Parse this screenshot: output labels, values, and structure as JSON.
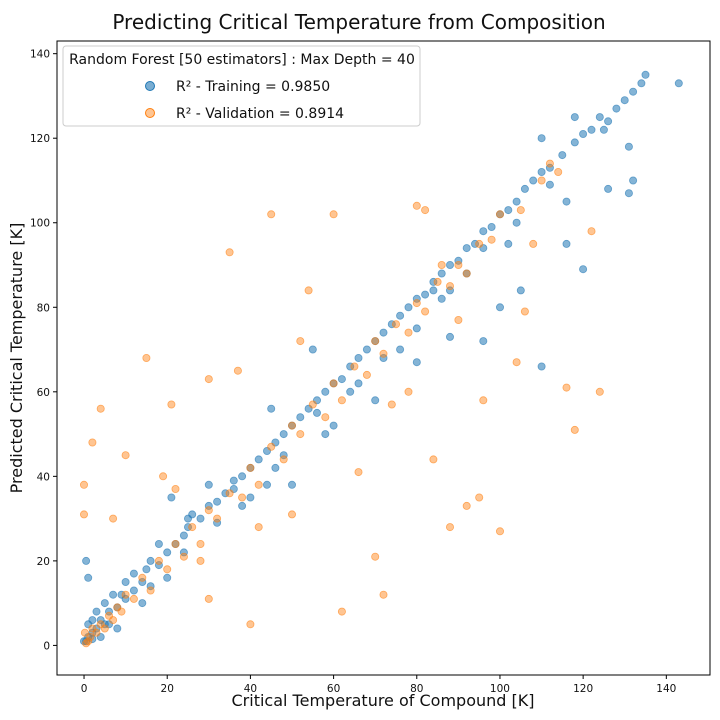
{
  "chart_data": {
    "type": "scatter",
    "title": "Predicting Critical Temperature from Composition",
    "xlabel": "Critical Temperature of Compound [K]",
    "ylabel": "Predicted Critical Temperature [K]",
    "xlim": [
      -6.5,
      150.5
    ],
    "ylim": [
      -7,
      143
    ],
    "xticks": [
      0,
      20,
      40,
      60,
      80,
      100,
      120,
      140
    ],
    "yticks": [
      0,
      20,
      40,
      60,
      80,
      100,
      120,
      140
    ],
    "grid": false,
    "legend": {
      "title": "Random Forest [50 estimators] : Max Depth = 40",
      "placement": "top-left",
      "entries": [
        {
          "label": "R² - Training = 0.9850",
          "color": "#1f77b4"
        },
        {
          "label": "R² - Validation = 0.8914",
          "color": "#ff7f0e"
        }
      ]
    },
    "series": [
      {
        "name": "R² - Training = 0.9850",
        "color": "#1f77b4",
        "points": [
          [
            0.5,
            1.0
          ],
          [
            1,
            2
          ],
          [
            2,
            1.5
          ],
          [
            3,
            4
          ],
          [
            5,
            5
          ],
          [
            4,
            6
          ],
          [
            6,
            8
          ],
          [
            8,
            9
          ],
          [
            10,
            11
          ],
          [
            12,
            13
          ],
          [
            14,
            15
          ],
          [
            15,
            18
          ],
          [
            18,
            19
          ],
          [
            20,
            22
          ],
          [
            22,
            24
          ],
          [
            24,
            26
          ],
          [
            25,
            28
          ],
          [
            28,
            30
          ],
          [
            30,
            33
          ],
          [
            32,
            34
          ],
          [
            34,
            36
          ],
          [
            36,
            37
          ],
          [
            38,
            40
          ],
          [
            40,
            42
          ],
          [
            42,
            44
          ],
          [
            44,
            46
          ],
          [
            46,
            48
          ],
          [
            48,
            50
          ],
          [
            50,
            52
          ],
          [
            52,
            54
          ],
          [
            54,
            56
          ],
          [
            56,
            58
          ],
          [
            58,
            60
          ],
          [
            60,
            62
          ],
          [
            62,
            63
          ],
          [
            64,
            66
          ],
          [
            66,
            68
          ],
          [
            68,
            70
          ],
          [
            70,
            72
          ],
          [
            72,
            74
          ],
          [
            74,
            76
          ],
          [
            76,
            78
          ],
          [
            78,
            80
          ],
          [
            80,
            82
          ],
          [
            82,
            83
          ],
          [
            84,
            86
          ],
          [
            86,
            88
          ],
          [
            88,
            90
          ],
          [
            90,
            91
          ],
          [
            92,
            94
          ],
          [
            94,
            95
          ],
          [
            96,
            98
          ],
          [
            98,
            99
          ],
          [
            100,
            102
          ],
          [
            102,
            103
          ],
          [
            104,
            105
          ],
          [
            106,
            108
          ],
          [
            108,
            110
          ],
          [
            110,
            112
          ],
          [
            112,
            113
          ],
          [
            115,
            116
          ],
          [
            118,
            119
          ],
          [
            120,
            121
          ],
          [
            122,
            122
          ],
          [
            124,
            125
          ],
          [
            126,
            124
          ],
          [
            128,
            127
          ],
          [
            130,
            129
          ],
          [
            132,
            131
          ],
          [
            134,
            133
          ],
          [
            135,
            135
          ],
          [
            143,
            133
          ],
          [
            131,
            118
          ],
          [
            132,
            110
          ],
          [
            126,
            108
          ],
          [
            131,
            107
          ],
          [
            120,
            89
          ],
          [
            116,
            95
          ],
          [
            116,
            105
          ],
          [
            125,
            122
          ],
          [
            110,
            120
          ],
          [
            118,
            125
          ],
          [
            105,
            84
          ],
          [
            100,
            80
          ],
          [
            96,
            72
          ],
          [
            110,
            66
          ],
          [
            88,
            73
          ],
          [
            80,
            67
          ],
          [
            84,
            84
          ],
          [
            70,
            58
          ],
          [
            60,
            52
          ],
          [
            55,
            70
          ],
          [
            50,
            38
          ],
          [
            45,
            56
          ],
          [
            44,
            38
          ],
          [
            36,
            39
          ],
          [
            30,
            38
          ],
          [
            26,
            31
          ],
          [
            25,
            30
          ],
          [
            21,
            35
          ],
          [
            20,
            16
          ],
          [
            18,
            24
          ],
          [
            16,
            20
          ],
          [
            14,
            10
          ],
          [
            12,
            17
          ],
          [
            10,
            15
          ],
          [
            9,
            12
          ],
          [
            7,
            12
          ],
          [
            6,
            5
          ],
          [
            5,
            10
          ],
          [
            4,
            2
          ],
          [
            3,
            8
          ],
          [
            2,
            6
          ],
          [
            1,
            16
          ],
          [
            0.5,
            20
          ],
          [
            1,
            5
          ],
          [
            2,
            3
          ],
          [
            0,
            1
          ],
          [
            8,
            4
          ],
          [
            16,
            14
          ],
          [
            24,
            22
          ],
          [
            32,
            29
          ],
          [
            40,
            35
          ],
          [
            48,
            45
          ],
          [
            56,
            55
          ],
          [
            64,
            60
          ],
          [
            72,
            68
          ],
          [
            80,
            75
          ],
          [
            88,
            84
          ],
          [
            96,
            94
          ],
          [
            104,
            100
          ],
          [
            112,
            109
          ],
          [
            102,
            95
          ],
          [
            92,
            88
          ],
          [
            86,
            82
          ],
          [
            76,
            70
          ],
          [
            66,
            62
          ],
          [
            58,
            50
          ],
          [
            46,
            42
          ],
          [
            38,
            33
          ]
        ]
      },
      {
        "name": "R² - Validation = 0.8914",
        "color": "#ff7f0e",
        "points": [
          [
            0.5,
            0.5
          ],
          [
            1,
            1
          ],
          [
            0.2,
            3
          ],
          [
            1.5,
            2
          ],
          [
            2,
            4
          ],
          [
            3,
            3
          ],
          [
            4,
            5
          ],
          [
            5,
            4
          ],
          [
            6,
            7
          ],
          [
            7,
            6
          ],
          [
            8,
            9
          ],
          [
            9,
            8
          ],
          [
            10,
            12
          ],
          [
            12,
            11
          ],
          [
            14,
            16
          ],
          [
            16,
            13
          ],
          [
            18,
            20
          ],
          [
            20,
            18
          ],
          [
            22,
            24
          ],
          [
            24,
            21
          ],
          [
            26,
            28
          ],
          [
            28,
            24
          ],
          [
            30,
            32
          ],
          [
            32,
            30
          ],
          [
            35,
            36
          ],
          [
            38,
            35
          ],
          [
            40,
            42
          ],
          [
            42,
            38
          ],
          [
            45,
            47
          ],
          [
            48,
            44
          ],
          [
            50,
            52
          ],
          [
            52,
            50
          ],
          [
            55,
            57
          ],
          [
            58,
            54
          ],
          [
            60,
            62
          ],
          [
            62,
            58
          ],
          [
            65,
            66
          ],
          [
            68,
            64
          ],
          [
            70,
            72
          ],
          [
            72,
            69
          ],
          [
            75,
            76
          ],
          [
            78,
            74
          ],
          [
            80,
            81
          ],
          [
            82,
            79
          ],
          [
            85,
            86
          ],
          [
            88,
            85
          ],
          [
            90,
            90
          ],
          [
            92,
            88
          ],
          [
            95,
            95
          ],
          [
            98,
            96
          ],
          [
            100,
            102
          ],
          [
            105,
            103
          ],
          [
            110,
            110
          ],
          [
            114,
            112
          ],
          [
            0,
            38
          ],
          [
            0,
            31
          ],
          [
            2,
            48
          ],
          [
            4,
            56
          ],
          [
            7,
            30
          ],
          [
            10,
            45
          ],
          [
            15,
            68
          ],
          [
            19,
            40
          ],
          [
            21,
            57
          ],
          [
            22,
            37
          ],
          [
            28,
            20
          ],
          [
            30,
            11
          ],
          [
            30,
            63
          ],
          [
            35,
            93
          ],
          [
            37,
            65
          ],
          [
            40,
            5
          ],
          [
            42,
            28
          ],
          [
            45,
            102
          ],
          [
            50,
            31
          ],
          [
            52,
            72
          ],
          [
            54,
            84
          ],
          [
            60,
            102
          ],
          [
            62,
            8
          ],
          [
            66,
            41
          ],
          [
            70,
            21
          ],
          [
            72,
            12
          ],
          [
            74,
            57
          ],
          [
            78,
            60
          ],
          [
            80,
            104
          ],
          [
            82,
            103
          ],
          [
            86,
            90
          ],
          [
            88,
            28
          ],
          [
            90,
            77
          ],
          [
            92,
            33
          ],
          [
            95,
            35
          ],
          [
            100,
            27
          ],
          [
            104,
            67
          ],
          [
            106,
            79
          ],
          [
            108,
            95
          ],
          [
            112,
            114
          ],
          [
            116,
            61
          ],
          [
            118,
            51
          ],
          [
            124,
            60
          ],
          [
            122,
            98
          ],
          [
            96,
            58
          ],
          [
            84,
            44
          ]
        ]
      }
    ]
  }
}
